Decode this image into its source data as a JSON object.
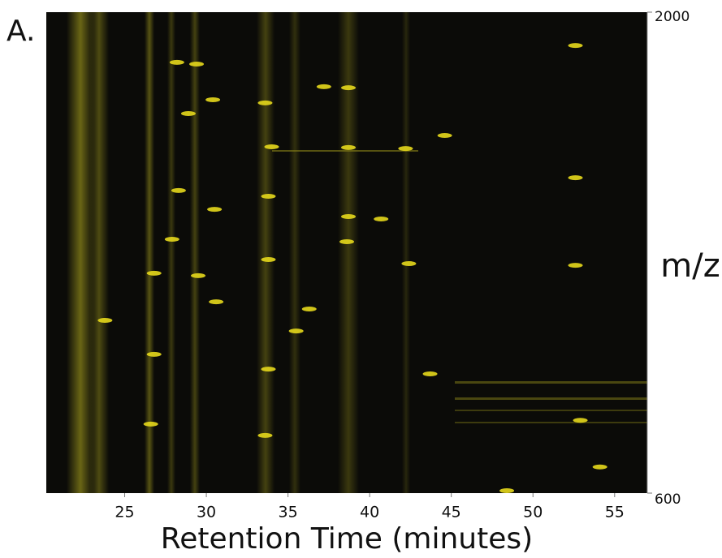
{
  "panel_label": "A.",
  "chart_data": {
    "type": "scatter",
    "x_label": "Retention Time (minutes)",
    "y_label": "m/z",
    "xlim": [
      20.2,
      57
    ],
    "xticks": [
      25,
      30,
      35,
      40,
      45,
      50,
      55
    ],
    "ylim": [
      600,
      2000
    ],
    "yticks": [
      600,
      2000
    ],
    "color": "#e6d81c",
    "x": [
      34.0,
      38.7,
      42.2,
      37.2,
      38.7,
      30.4,
      28.9,
      28.2,
      29.4,
      33.6,
      27.9,
      33.8,
      38.6,
      35.5,
      29.5,
      26.8,
      23.8,
      26.8,
      33.8,
      43.7,
      42.4,
      44.6,
      33.6,
      52.9,
      54.1,
      48.4,
      26.6,
      30.5,
      38.7,
      30.6,
      36.3,
      40.7,
      28.3,
      33.8,
      52.6,
      52.6,
      52.6
    ],
    "values": [
      1608,
      1606,
      1603,
      1783,
      1780,
      1745,
      1705,
      1854,
      1849,
      1736,
      1339,
      1280,
      1332,
      1072,
      1233,
      1240,
      1103,
      1004,
      961,
      947,
      1268,
      1641,
      768,
      812,
      676,
      607,
      801,
      1426,
      1405,
      1157,
      1136,
      1398,
      1481,
      1464,
      1903,
      1518,
      1263
    ]
  }
}
